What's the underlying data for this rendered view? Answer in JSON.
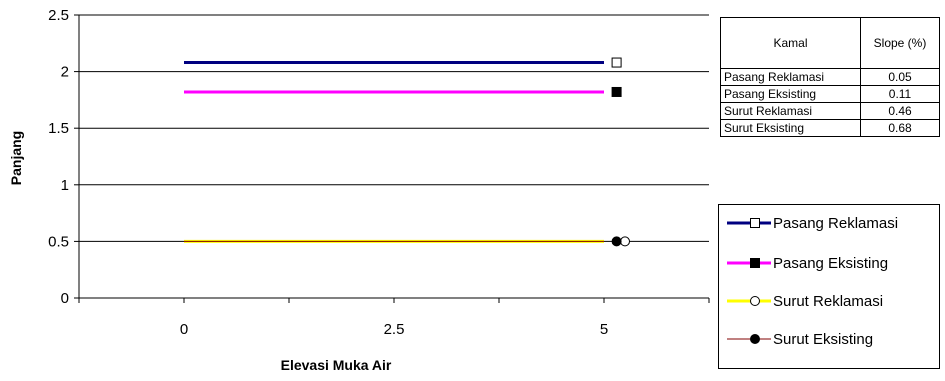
{
  "chart_data": {
    "type": "line",
    "xlabel": "Elevasi Muka Air",
    "ylabel": "Panjang",
    "xlim": [
      -1.25,
      6.25
    ],
    "ylim": [
      0,
      2.5
    ],
    "x_ticks": [
      "0",
      "2.5",
      "5"
    ],
    "x_tick_values": [
      0,
      2.5,
      5
    ],
    "y_ticks": [
      "0",
      "0.5",
      "1",
      "1.5",
      "2",
      "2.5"
    ],
    "y_tick_values": [
      0,
      0.5,
      1,
      1.5,
      2,
      2.5
    ],
    "grid": "horizontal",
    "series": [
      {
        "name": "Pasang Reklamasi",
        "color": "#000080",
        "marker": "open-square",
        "x": [
          0,
          5
        ],
        "y": [
          2.08,
          2.08
        ],
        "marker_point": [
          5.15,
          2.08
        ]
      },
      {
        "name": "Pasang Eksisting",
        "color": "#ff00ff",
        "marker": "filled-square",
        "x": [
          0,
          5
        ],
        "y": [
          1.82,
          1.82
        ],
        "marker_point": [
          5.15,
          1.82
        ]
      },
      {
        "name": "Surut Reklamasi",
        "color": "#ffff00",
        "marker": "open-circle",
        "x": [
          0,
          5
        ],
        "y": [
          0.5,
          0.5
        ],
        "marker_point": [
          5.25,
          0.5
        ]
      },
      {
        "name": "Surut Eksisting",
        "color": "#800000",
        "marker": "filled-circle",
        "x": [
          0,
          5
        ],
        "y": [
          0.5,
          0.5
        ],
        "marker_point": [
          5.15,
          0.5
        ]
      }
    ]
  },
  "slope_table": {
    "headers": [
      "Kamal",
      "Slope (%)"
    ],
    "rows": [
      {
        "name": "Pasang Reklamasi",
        "value": "0.05"
      },
      {
        "name": "Pasang Eksisting",
        "value": "0.11"
      },
      {
        "name": "Surut Reklamasi",
        "value": "0.46"
      },
      {
        "name": "Surut Eksisting",
        "value": "0.68"
      }
    ]
  },
  "legend": {
    "items": [
      {
        "label": "Pasang Reklamasi"
      },
      {
        "label": "Pasang Eksisting"
      },
      {
        "label": "Surut Reklamasi"
      },
      {
        "label": "Surut Eksisting"
      }
    ]
  }
}
